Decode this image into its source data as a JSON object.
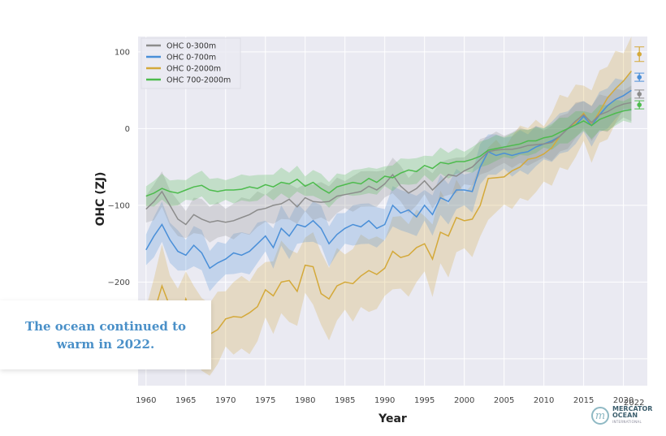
{
  "chart_data": {
    "type": "line",
    "title": "",
    "xlabel": "Year",
    "ylabel": "OHC (ZJ)",
    "xlim": [
      1959,
      2023
    ],
    "ylim": [
      -335,
      120
    ],
    "x_ticks": [
      1960,
      1965,
      1970,
      1975,
      1980,
      1985,
      1990,
      1995,
      2000,
      2005,
      2010,
      2015,
      2020
    ],
    "y_ticks": [
      100,
      0,
      -100,
      -200,
      -300
    ],
    "grid": true,
    "legend_position": "top-left",
    "x": [
      1960,
      1961,
      1962,
      1963,
      1964,
      1965,
      1966,
      1967,
      1968,
      1969,
      1970,
      1971,
      1972,
      1973,
      1974,
      1975,
      1976,
      1977,
      1978,
      1979,
      1980,
      1981,
      1982,
      1983,
      1984,
      1985,
      1986,
      1987,
      1988,
      1989,
      1990,
      1991,
      1992,
      1993,
      1994,
      1995,
      1996,
      1997,
      1998,
      1999,
      2000,
      2001,
      2002,
      2003,
      2004,
      2005,
      2006,
      2007,
      2008,
      2009,
      2010,
      2011,
      2012,
      2013,
      2014,
      2015,
      2016,
      2017,
      2018,
      2019,
      2020,
      2021
    ],
    "series": [
      {
        "name": "OHC 0-300m",
        "color": "#8c8c8c",
        "values": [
          -105,
          -95,
          -82,
          -100,
          -118,
          -125,
          -112,
          -118,
          -122,
          -120,
          -122,
          -120,
          -116,
          -112,
          -106,
          -104,
          -100,
          -98,
          -92,
          -102,
          -90,
          -95,
          -96,
          -95,
          -88,
          -86,
          -84,
          -82,
          -75,
          -80,
          -72,
          -60,
          -75,
          -84,
          -78,
          -68,
          -80,
          -70,
          -60,
          -62,
          -55,
          -50,
          -40,
          -30,
          -28,
          -27,
          -27,
          -25,
          -22,
          -21,
          -20,
          -18,
          -10,
          0,
          10,
          18,
          8,
          18,
          22,
          28,
          32,
          34
        ],
        "band": 22,
        "marker_2022": 45
      },
      {
        "name": "OHC 0-700m",
        "color": "#4a8fd8",
        "values": [
          -158,
          -140,
          -125,
          -145,
          -160,
          -165,
          -152,
          -162,
          -182,
          -175,
          -170,
          -162,
          -165,
          -160,
          -150,
          -140,
          -155,
          -130,
          -140,
          -125,
          -128,
          -120,
          -130,
          -150,
          -138,
          -130,
          -125,
          -128,
          -120,
          -130,
          -125,
          -100,
          -110,
          -106,
          -115,
          -100,
          -112,
          -90,
          -95,
          -80,
          -80,
          -82,
          -50,
          -30,
          -35,
          -32,
          -35,
          -32,
          -30,
          -24,
          -20,
          -16,
          -10,
          0,
          5,
          16,
          4,
          18,
          30,
          38,
          43,
          50
        ],
        "band": 25,
        "marker_2022": 67
      },
      {
        "name": "OHC 0-2000m",
        "color": "#d4a93a",
        "values": [
          -270,
          -240,
          -205,
          -232,
          -258,
          -222,
          -250,
          -275,
          -268,
          -262,
          -248,
          -245,
          -246,
          -240,
          -232,
          -210,
          -218,
          -200,
          -198,
          -212,
          -178,
          -180,
          -215,
          -222,
          -205,
          -200,
          -202,
          -192,
          -185,
          -190,
          -182,
          -160,
          -168,
          -165,
          -155,
          -150,
          -170,
          -135,
          -140,
          -116,
          -120,
          -118,
          -100,
          -65,
          -64,
          -63,
          -55,
          -50,
          -40,
          -38,
          -33,
          -25,
          -10,
          0,
          8,
          20,
          5,
          22,
          40,
          52,
          62,
          75
        ],
        "band": 45,
        "marker_2022": 97
      },
      {
        "name": "OHC 700-2000m",
        "color": "#4dbb4d",
        "values": [
          -88,
          -84,
          -78,
          -82,
          -84,
          -80,
          -76,
          -74,
          -80,
          -82,
          -80,
          -80,
          -79,
          -76,
          -78,
          -73,
          -76,
          -70,
          -72,
          -66,
          -75,
          -70,
          -78,
          -84,
          -76,
          -73,
          -70,
          -72,
          -65,
          -70,
          -62,
          -64,
          -58,
          -54,
          -56,
          -48,
          -52,
          -44,
          -46,
          -43,
          -43,
          -40,
          -36,
          -28,
          -26,
          -24,
          -22,
          -20,
          -16,
          -16,
          -12,
          -10,
          -5,
          0,
          5,
          10,
          4,
          12,
          16,
          20,
          23,
          25
        ],
        "band": 16,
        "marker_2022": 31
      }
    ]
  },
  "callout": {
    "line1": "The ocean continued to",
    "line2": "warm in 2022."
  },
  "extra_tick": "2022",
  "logo": {
    "icon": "m-wave-logo-icon",
    "line1": "MERCATOR",
    "line2": "OCEAN",
    "line3": "INTERNATIONAL"
  }
}
